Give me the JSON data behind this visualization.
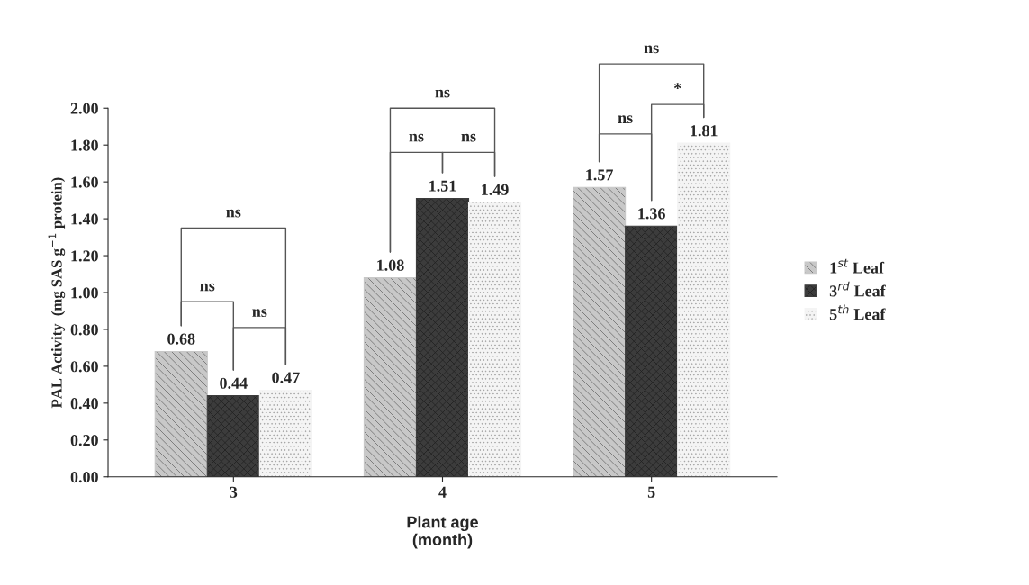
{
  "chart_data": {
    "type": "bar",
    "categories": [
      "3",
      "4",
      "5"
    ],
    "xlabel": "Plant age\n(month)",
    "ylabel": "PAL Activity  (mg SAS g$^{−1}$ protein)",
    "series": [
      {
        "name": "1$^{st}$ Leaf",
        "color": "#c8c8c8",
        "values": [
          0.68,
          1.08,
          1.57
        ]
      },
      {
        "name": "3$^{rd}$ Leaf",
        "color": "#3c3c3c",
        "values": [
          0.44,
          1.51,
          1.36
        ]
      },
      {
        "name": "5$^{th}$ Leaf",
        "color": "#f4f4f4",
        "values": [
          0.47,
          1.49,
          1.81
        ]
      }
    ],
    "ylim": [
      0,
      2
    ],
    "yticks": [
      {
        "value": 0,
        "label": "0.00"
      },
      {
        "value": 0.2,
        "label": "0.20"
      },
      {
        "value": 0.4,
        "label": "0.40"
      },
      {
        "value": 0.6,
        "label": "0.60"
      },
      {
        "value": 0.8,
        "label": "0.80"
      },
      {
        "value": 1.0,
        "label": "1.00"
      },
      {
        "value": 1.2,
        "label": "1.20"
      },
      {
        "value": 1.4,
        "label": "1.40"
      },
      {
        "value": 1.6,
        "label": "1.60"
      },
      {
        "value": 1.8,
        "label": "1.80"
      },
      {
        "value": 2.0,
        "label": "2.00"
      }
    ],
    "data_labels": true,
    "legend": "right",
    "grid": false,
    "annotations": [
      "ns",
      "ns",
      "ns",
      "ns",
      "ns",
      "ns",
      "ns",
      "*",
      "ns"
    ]
  }
}
